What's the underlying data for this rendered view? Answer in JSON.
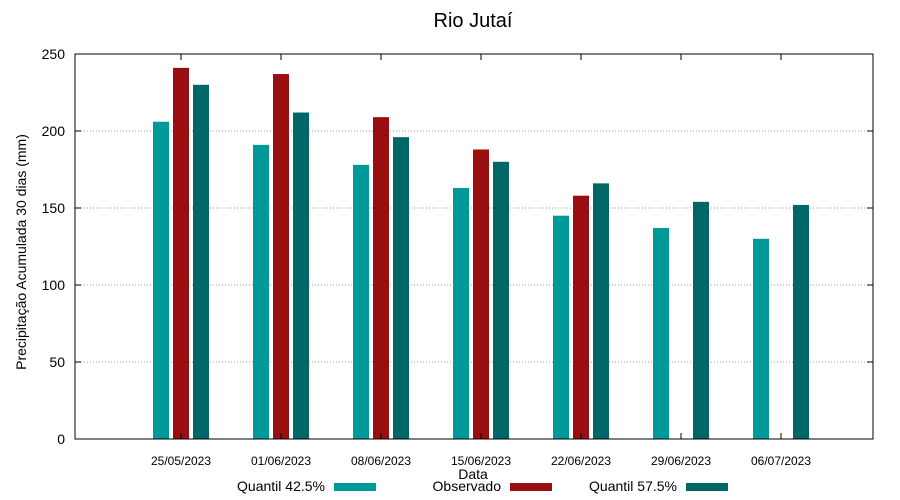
{
  "chart_data": {
    "type": "bar",
    "title": "Rio Jutaí",
    "xlabel": "Data",
    "ylabel": "Precipitação Acumulada 30 dias (mm)",
    "categories": [
      "25/05/2023",
      "01/06/2023",
      "08/06/2023",
      "15/06/2023",
      "22/06/2023",
      "29/06/2023",
      "06/07/2023"
    ],
    "series": [
      {
        "name": "Quantil 42.5%",
        "color": "#009999",
        "values": [
          206,
          191,
          178,
          163,
          145,
          137,
          130
        ]
      },
      {
        "name": "Observado",
        "color": "#990f0f",
        "values": [
          241,
          237,
          209,
          188,
          158,
          null,
          null
        ]
      },
      {
        "name": "Quantil 57.5%",
        "color": "#006666",
        "values": [
          230,
          212,
          196,
          180,
          166,
          154,
          152
        ]
      }
    ],
    "ylim": [
      0,
      250
    ],
    "yticks": [
      0,
      50,
      100,
      150,
      200,
      250
    ],
    "grid": "horizontal dotted",
    "legend_position": "bottom"
  }
}
